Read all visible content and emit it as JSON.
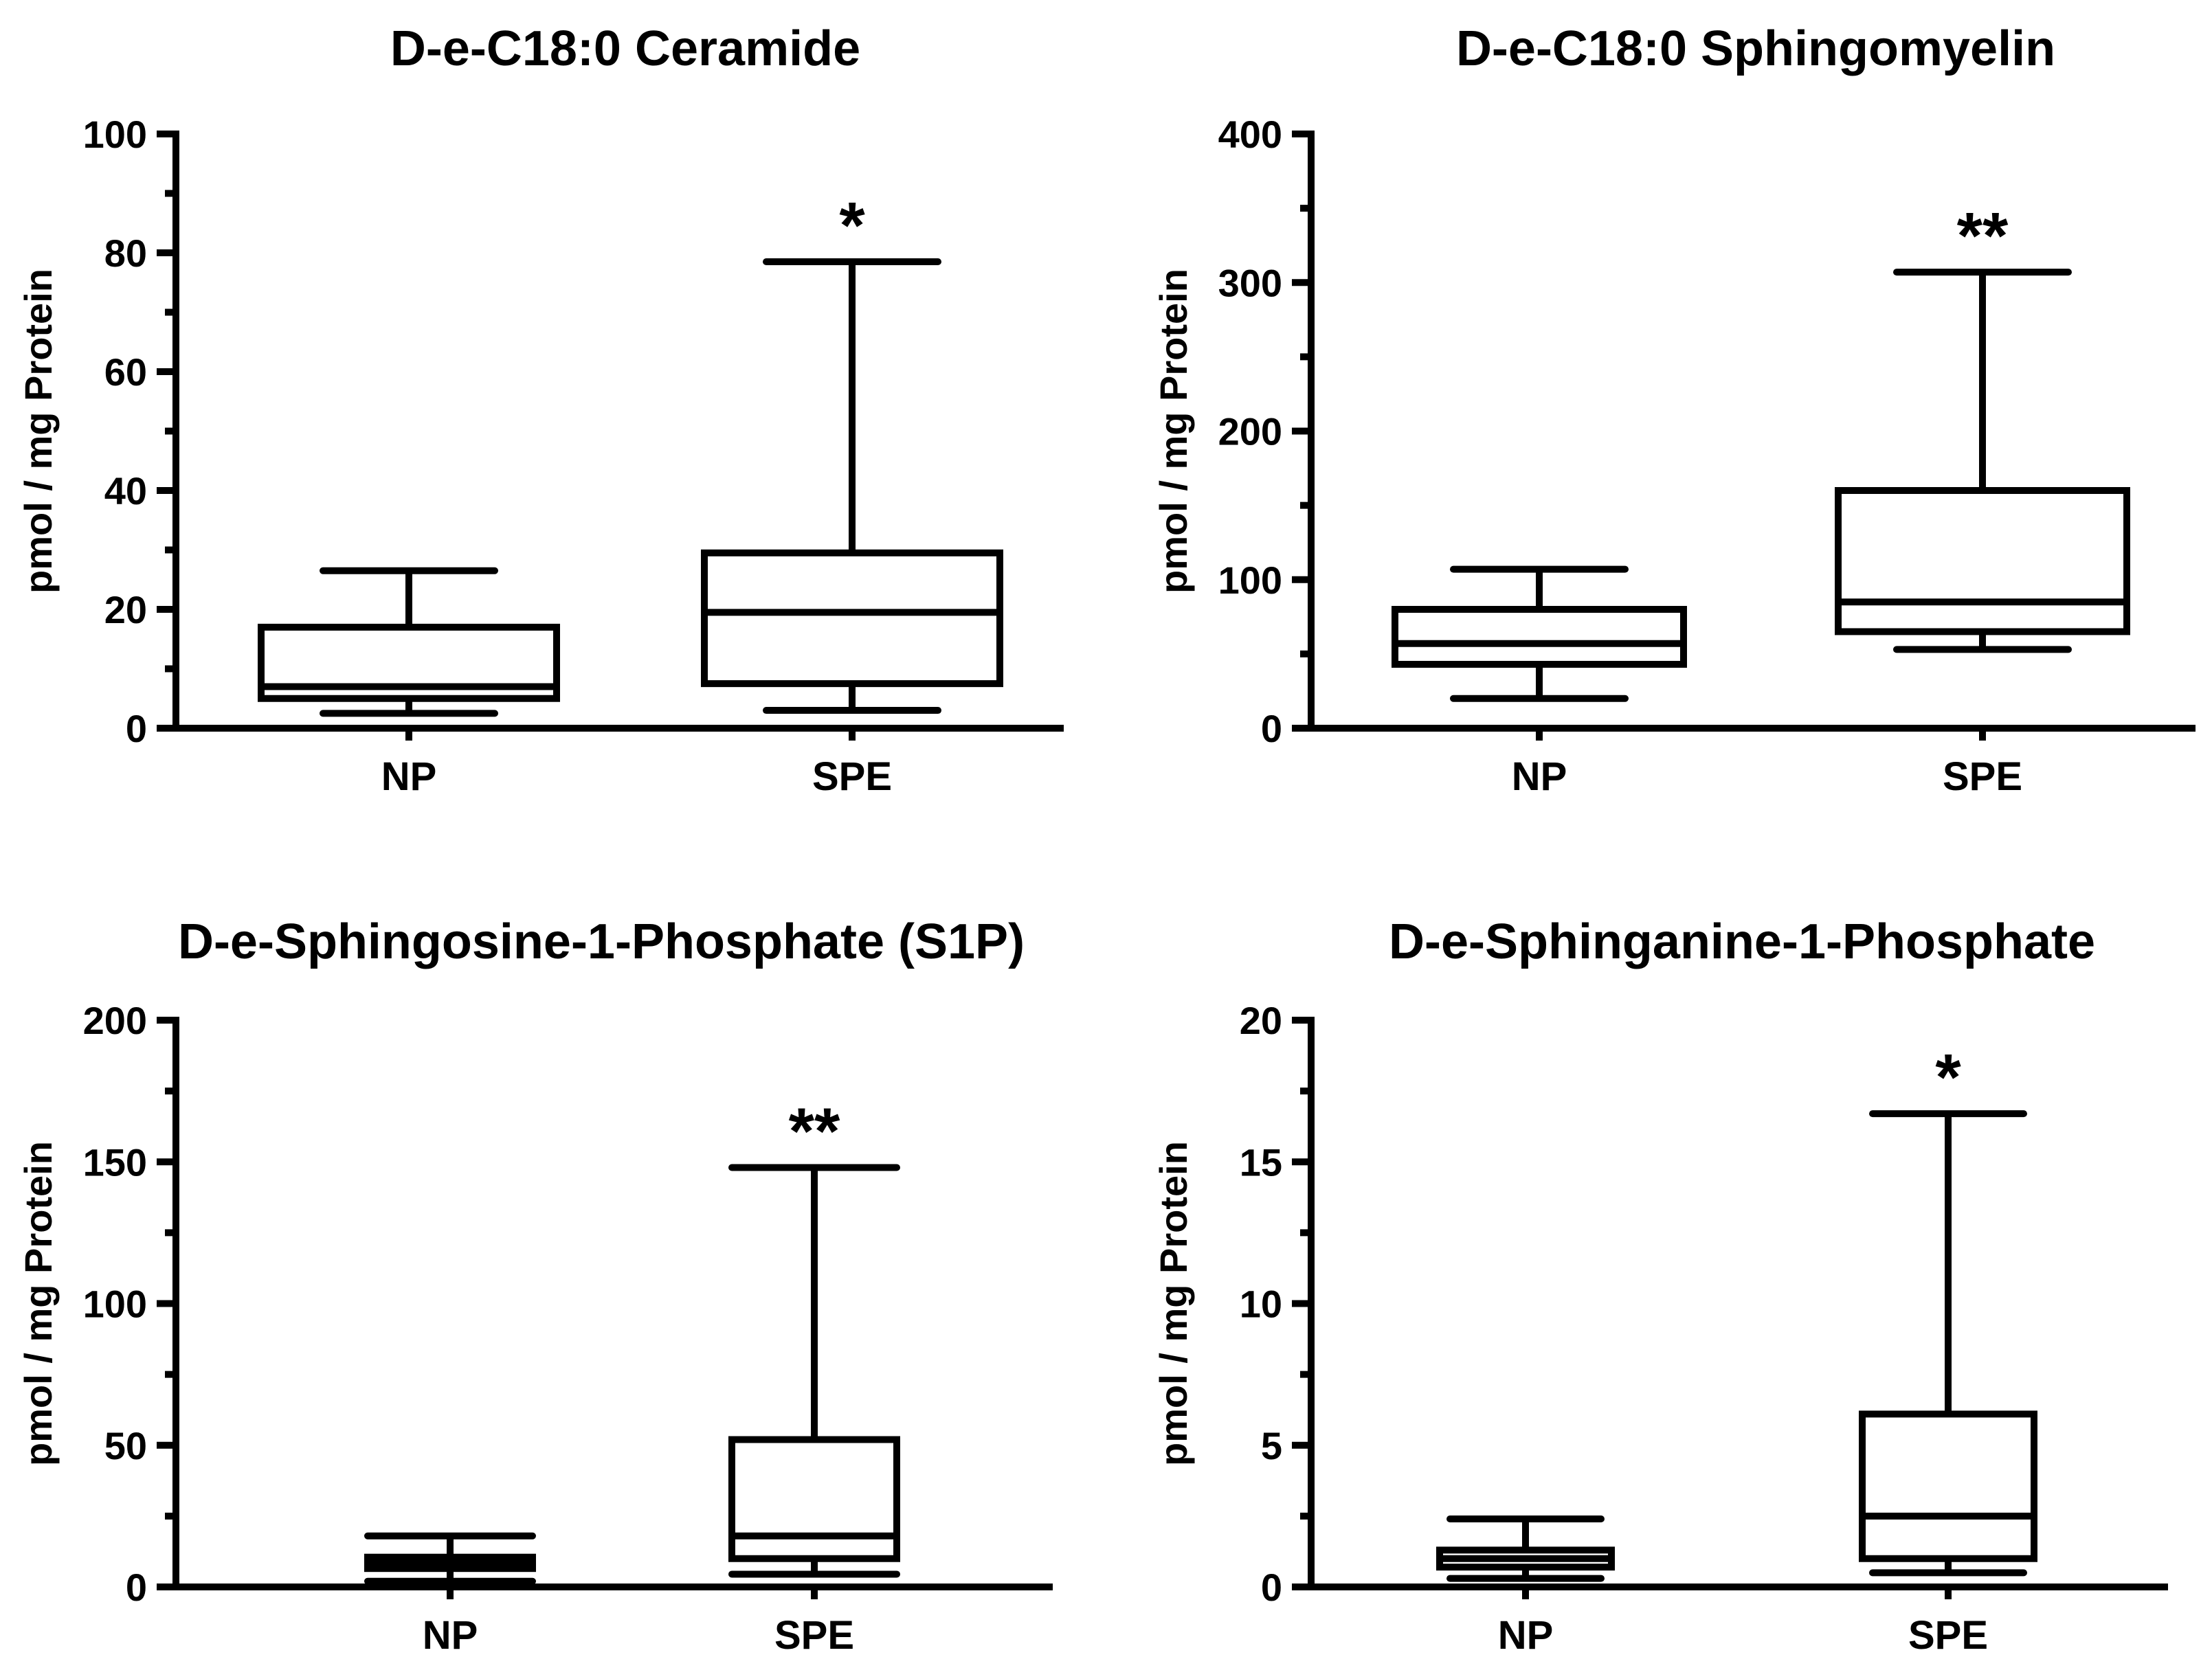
{
  "chart_data": [
    {
      "type": "boxplot",
      "title": "D-e-C18:0 Ceramide",
      "ylabel": "pmol / mg  Protein",
      "xlabel": "",
      "ylim": [
        0,
        100
      ],
      "yticks": [
        0,
        20,
        40,
        60,
        80,
        100
      ],
      "tick_labels": [
        "0",
        "20",
        "40",
        "60",
        "80",
        "100"
      ],
      "categories": [
        "NP",
        "SPE"
      ],
      "boxes": [
        {
          "min": 2.5,
          "q1": 5,
          "median": 7,
          "q3": 17,
          "max": 26.5
        },
        {
          "min": 3,
          "q1": 7.5,
          "median": 19.5,
          "q3": 29.5,
          "max": 78.5
        }
      ],
      "annotations": [
        "",
        "*"
      ]
    },
    {
      "type": "boxplot",
      "title": "D-e-C18:0 Sphingomyelin",
      "ylabel": "pmol / mg  Protein",
      "xlabel": "",
      "ylim": [
        0,
        400
      ],
      "yticks": [
        0,
        100,
        200,
        300,
        400
      ],
      "tick_labels": [
        "0",
        "100",
        "200",
        "300",
        "400"
      ],
      "categories": [
        "NP",
        "SPE"
      ],
      "boxes": [
        {
          "min": 20,
          "q1": 43,
          "median": 57,
          "q3": 80,
          "max": 107
        },
        {
          "min": 53,
          "q1": 65,
          "median": 85,
          "q3": 160,
          "max": 307
        }
      ],
      "annotations": [
        "",
        "**"
      ]
    },
    {
      "type": "boxplot",
      "title": "D-e-Sphingosine-1-Phosphate (S1P)",
      "ylabel": "pmol / mg  Protein",
      "xlabel": "",
      "ylim": [
        0,
        200
      ],
      "yticks": [
        0,
        50,
        100,
        150,
        200
      ],
      "tick_labels": [
        "0",
        "50",
        "100",
        "150",
        "200"
      ],
      "categories": [
        "NP",
        "SPE"
      ],
      "boxes": [
        {
          "min": 2,
          "q1": 6.5,
          "median": 8.5,
          "q3": 10.5,
          "max": 18
        },
        {
          "min": 4.5,
          "q1": 10,
          "median": 18,
          "q3": 52,
          "max": 148
        }
      ],
      "annotations": [
        "",
        "**"
      ]
    },
    {
      "type": "boxplot",
      "title": "D-e-Sphinganine-1-Phosphate",
      "ylabel": "pmol / mg  Protein",
      "xlabel": "",
      "ylim": [
        0,
        20
      ],
      "yticks": [
        0,
        5,
        10,
        15,
        20
      ],
      "tick_labels": [
        "0",
        "5",
        "10",
        "15",
        "20"
      ],
      "categories": [
        "NP",
        "SPE"
      ],
      "boxes": [
        {
          "min": 0.3,
          "q1": 0.7,
          "median": 1.0,
          "q3": 1.3,
          "max": 2.4
        },
        {
          "min": 0.5,
          "q1": 1.0,
          "median": 2.5,
          "q3": 6.1,
          "max": 16.7
        }
      ],
      "annotations": [
        "",
        "*"
      ]
    }
  ]
}
